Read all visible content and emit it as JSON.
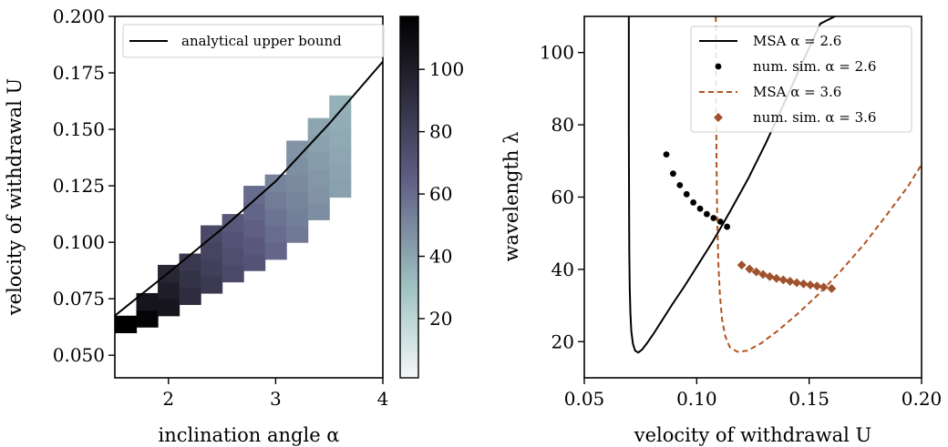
{
  "chart_data": [
    {
      "type": "heatmap",
      "xlabel": "inclination angle α",
      "ylabel": "velocity of withdrawal U",
      "xlim": [
        1.5,
        4.0
      ],
      "ylim": [
        0.04,
        0.2
      ],
      "xticks": [
        "2",
        "3",
        "4"
      ],
      "yticks": [
        "0.050",
        "0.075",
        "0.100",
        "0.125",
        "0.150",
        "0.175",
        "0.200"
      ],
      "legend": {
        "placement": "top-left",
        "entries": [
          "analytical upper bound"
        ]
      },
      "colorbar": {
        "ticks": [
          "20",
          "40",
          "60",
          "80",
          "100"
        ],
        "range": [
          1,
          117
        ],
        "colormap": [
          "#f4f8f8",
          "#9fc2c2",
          "#5f5e84",
          "#2a2838",
          "#000000"
        ]
      },
      "cell_width": 0.2,
      "cell_height": 0.0075,
      "columns": [
        {
          "x": 1.6,
          "y_min": 0.06,
          "y_max": 0.0675,
          "v_start": 117,
          "v_end": 110
        },
        {
          "x": 1.8,
          "y_min": 0.0625,
          "y_max": 0.08,
          "v_start": 115,
          "v_end": 105
        },
        {
          "x": 2.0,
          "y_min": 0.0675,
          "y_max": 0.0875,
          "v_start": 105,
          "v_end": 95
        },
        {
          "x": 2.2,
          "y_min": 0.0725,
          "y_max": 0.095,
          "v_start": 92,
          "v_end": 85
        },
        {
          "x": 2.4,
          "y_min": 0.0775,
          "y_max": 0.105,
          "v_start": 84,
          "v_end": 76
        },
        {
          "x": 2.6,
          "y_min": 0.0825,
          "y_max": 0.1125,
          "v_start": 76,
          "v_end": 68
        },
        {
          "x": 2.8,
          "y_min": 0.0875,
          "y_max": 0.1225,
          "v_start": 70,
          "v_end": 60
        },
        {
          "x": 3.0,
          "y_min": 0.0925,
          "y_max": 0.1325,
          "v_start": 62,
          "v_end": 52
        },
        {
          "x": 3.2,
          "y_min": 0.1,
          "y_max": 0.1425,
          "v_start": 55,
          "v_end": 46
        },
        {
          "x": 3.4,
          "y_min": 0.11,
          "y_max": 0.1525,
          "v_start": 48,
          "v_end": 40
        },
        {
          "x": 3.6,
          "y_min": 0.12,
          "y_max": 0.1625,
          "v_start": 42,
          "v_end": 36
        }
      ],
      "upper_bound": {
        "x": [
          1.5,
          2.0,
          2.5,
          3.0,
          3.5,
          4.0
        ],
        "y": [
          0.0675,
          0.0865,
          0.106,
          0.127,
          0.1525,
          0.18
        ]
      }
    },
    {
      "type": "line",
      "xlabel": "velocity of withdrawal U",
      "ylabel": "wavelength λ",
      "xlim": [
        0.05,
        0.2
      ],
      "ylim": [
        10,
        110
      ],
      "xticks": [
        "0.05",
        "0.10",
        "0.15",
        "0.20"
      ],
      "yticks": [
        "20",
        "40",
        "60",
        "80",
        "100"
      ],
      "legend": {
        "placement": "top-right"
      },
      "series": [
        {
          "name": "MSA α = 2.6",
          "style": "solid",
          "color": "#000000",
          "x": [
            0.0698,
            0.0698,
            0.0699,
            0.07,
            0.0702,
            0.0705,
            0.0709,
            0.0716,
            0.0726,
            0.074,
            0.0757,
            0.0778,
            0.0806,
            0.0842,
            0.0888,
            0.0942,
            0.1003,
            0.1074,
            0.1148,
            0.1228,
            0.1308,
            0.1389,
            0.1468,
            0.155,
            0.1615
          ],
          "y": [
            110,
            80,
            60,
            45,
            35,
            28,
            23,
            19.5,
            17.5,
            17,
            17.8,
            19.5,
            22,
            25.5,
            30,
            35,
            41,
            48,
            56,
            65,
            75,
            86,
            97,
            108,
            110
          ]
        },
        {
          "name": "num. sim. α = 2.6",
          "style": "points",
          "color": "#000000",
          "x": [
            0.0865,
            0.0895,
            0.0925,
            0.0955,
            0.0985,
            0.1015,
            0.1045,
            0.1075,
            0.1105,
            0.1135
          ],
          "y": [
            71.8,
            66.5,
            63.3,
            60.8,
            58.5,
            56.8,
            55.3,
            54.2,
            53.2,
            51.8
          ]
        },
        {
          "name": "MSA α = 3.6",
          "style": "dashed",
          "color": "#b05320",
          "x": [
            0.1085,
            0.1086,
            0.1088,
            0.1091,
            0.1096,
            0.1103,
            0.1113,
            0.1127,
            0.1147,
            0.118,
            0.1225,
            0.1285,
            0.136,
            0.1445,
            0.154,
            0.164,
            0.1745,
            0.185,
            0.194,
            0.2
          ],
          "y": [
            110,
            90,
            70,
            55,
            42,
            33,
            26,
            21.5,
            18.5,
            17.2,
            17.5,
            19.5,
            23,
            27.5,
            33,
            39.5,
            47,
            55.5,
            63,
            69
          ]
        },
        {
          "name": "num. sim. α = 3.6",
          "style": "diamonds",
          "color": "#a0522d",
          "x": [
            0.12,
            0.1235,
            0.1265,
            0.1295,
            0.1325,
            0.1355,
            0.1385,
            0.1415,
            0.1445,
            0.1475,
            0.1505,
            0.1535,
            0.1565,
            0.16
          ],
          "y": [
            41.2,
            40.1,
            39.3,
            38.6,
            38,
            37.5,
            37.1,
            36.7,
            36.3,
            36,
            35.7,
            35.4,
            35.1,
            34.7
          ]
        }
      ]
    }
  ]
}
